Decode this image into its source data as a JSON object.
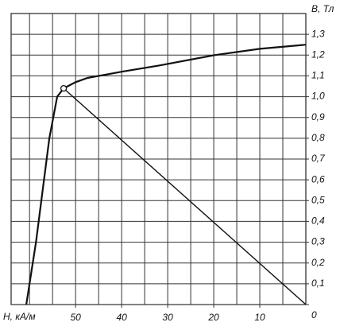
{
  "chart_data": {
    "type": "line",
    "x_label": "H, кА/м",
    "y_label": "B, Тл",
    "xlim": [
      0,
      64
    ],
    "x_reversed": true,
    "ylim": [
      0,
      1.4
    ],
    "xticks": [
      10,
      20,
      30,
      40,
      50
    ],
    "xgrid": [
      5,
      10,
      15,
      20,
      25,
      30,
      35,
      40,
      45,
      50,
      55,
      60
    ],
    "yticks": [
      0,
      {
        "value": 0.1,
        "label": "0,1"
      },
      {
        "value": 0.2,
        "label": "0,2"
      },
      {
        "value": 0.3,
        "label": "0,3"
      },
      {
        "value": 0.4,
        "label": "0,4"
      },
      {
        "value": 0.5,
        "label": "0,5"
      },
      {
        "value": 0.6,
        "label": "0,6"
      },
      {
        "value": 0.7,
        "label": "0,7"
      },
      {
        "value": 0.8,
        "label": "0,8"
      },
      {
        "value": 0.9,
        "label": "0,9"
      },
      {
        "value": 1.0,
        "label": "1,0"
      },
      {
        "value": 1.1,
        "label": "1,1"
      },
      {
        "value": 1.2,
        "label": "1,2"
      },
      {
        "value": 1.3,
        "label": "1,3"
      }
    ],
    "grid": true,
    "series": [
      {
        "color": "#111111",
        "x": [
          60.7,
          58.6,
          55.7,
          54,
          52.6,
          50,
          47.4,
          40,
          31.9,
          19.8,
          10,
          0
        ],
        "values": [
          0,
          0.3,
          0.8,
          1.0,
          1.04,
          1.07,
          1.09,
          1.12,
          1.15,
          1.2,
          1.23,
          1.25
        ]
      },
      {
        "color": "#111111",
        "x": [
          52.6,
          0
        ],
        "values": [
          1.04,
          0
        ]
      }
    ],
    "point": {
      "x": 52.6,
      "value": 1.04
    }
  }
}
